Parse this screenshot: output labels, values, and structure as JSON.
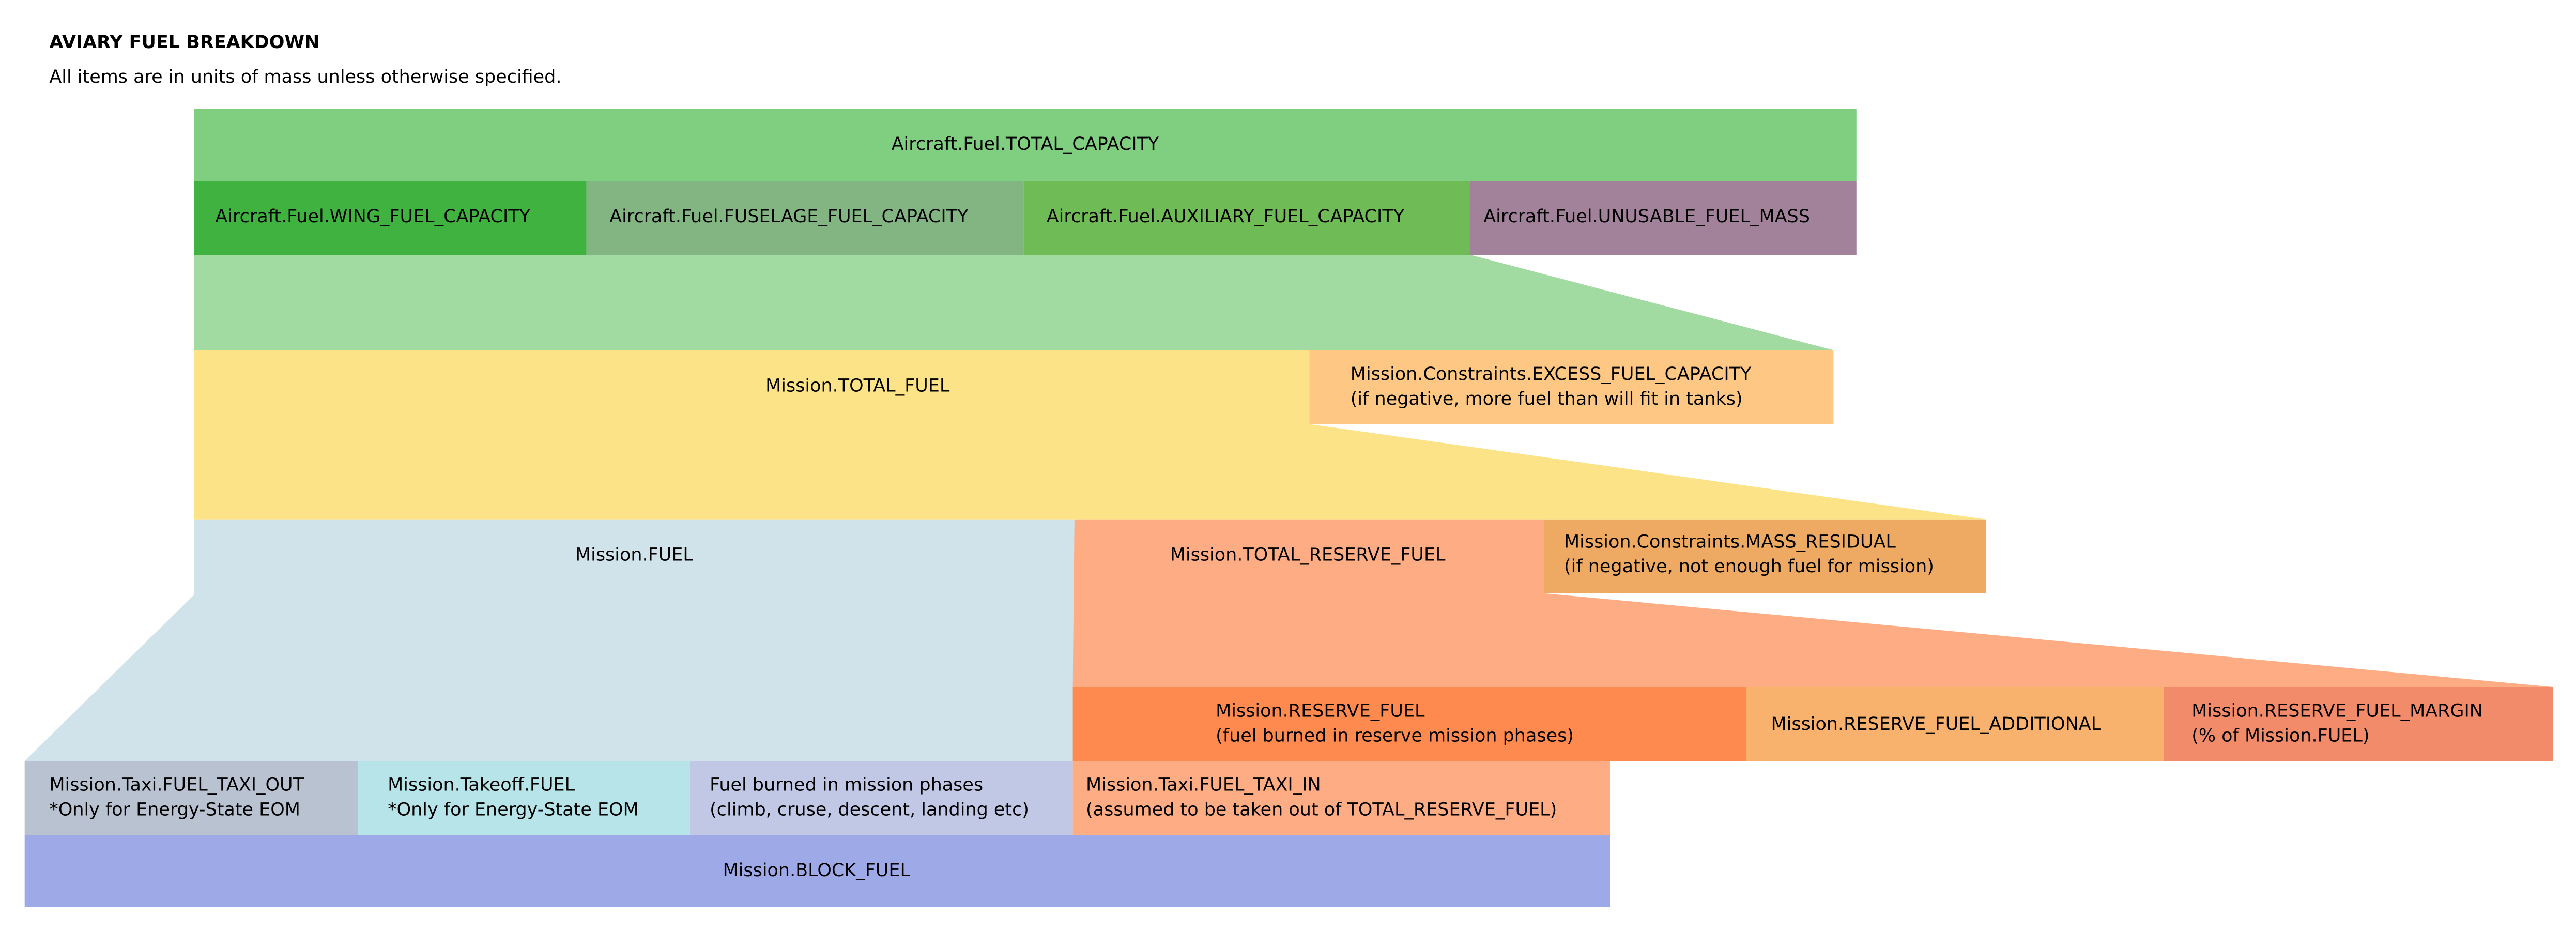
{
  "title": "AVIARY FUEL BREAKDOWN",
  "subtitle": "All items are in units of mass unless otherwise specified.",
  "aircraft": {
    "total_capacity": "Aircraft.Fuel.TOTAL_CAPACITY",
    "wing": "Aircraft.Fuel.WING_FUEL_CAPACITY",
    "fuselage": "Aircraft.Fuel.FUSELAGE_FUEL_CAPACITY",
    "auxiliary": "Aircraft.Fuel.AUXILIARY_FUEL_CAPACITY",
    "unusable": "Aircraft.Fuel.UNUSABLE_FUEL_MASS"
  },
  "mission": {
    "total_fuel": "Mission.TOTAL_FUEL",
    "excess_line1": "Mission.Constraints.EXCESS_FUEL_CAPACITY",
    "excess_line2": "(if negative, more fuel than will fit in tanks)",
    "fuel": "Mission.FUEL",
    "total_reserve": "Mission.TOTAL_RESERVE_FUEL",
    "residual_line1": "Mission.Constraints.MASS_RESIDUAL",
    "residual_line2": "(if negative, not enough fuel for mission)",
    "reserve_line1": "Mission.RESERVE_FUEL",
    "reserve_line2": "(fuel burned in reserve mission phases)",
    "reserve_additional": "Mission.RESERVE_FUEL_ADDITIONAL",
    "margin_line1": "Mission.RESERVE_FUEL_MARGIN",
    "margin_line2": "(% of Mission.FUEL)",
    "taxi_out_line1": "Mission.Taxi.FUEL_TAXI_OUT",
    "taxi_out_line2": "*Only for Energy-State EOM",
    "takeoff_line1": "Mission.Takeoff.FUEL",
    "takeoff_line2": "*Only for Energy-State EOM",
    "burned_line1": "Fuel burned in mission phases",
    "burned_line2": "(climb, cruse, descent, landing etc)",
    "taxi_in_line1": "Mission.Taxi.FUEL_TAXI_IN",
    "taxi_in_line2": "(assumed to be taken out of TOTAL_RESERVE_FUEL)",
    "block_fuel": "Mission.BLOCK_FUEL"
  },
  "colors": {
    "total_capacity": "#80ce80",
    "wing": "#40b240",
    "fuselage": "#82b582",
    "auxiliary": "#6fbb56",
    "unusable": "#a2829a",
    "capacity_funnel": "#a1dba1",
    "total_fuel": "#fde387",
    "excess": "#fec884",
    "fuel": "#d1e3ea",
    "total_reserve": "#feac83",
    "residual": "#eea963",
    "reserve": "#fe8a50",
    "additional": "#f9b26d",
    "margin": "#f28b6a",
    "taxi_out": "#b9c2d0",
    "takeoff": "#b6e4e9",
    "burned": "#c0c8e5",
    "taxi_in": "#feac83",
    "block_fuel": "#9eaae8"
  }
}
